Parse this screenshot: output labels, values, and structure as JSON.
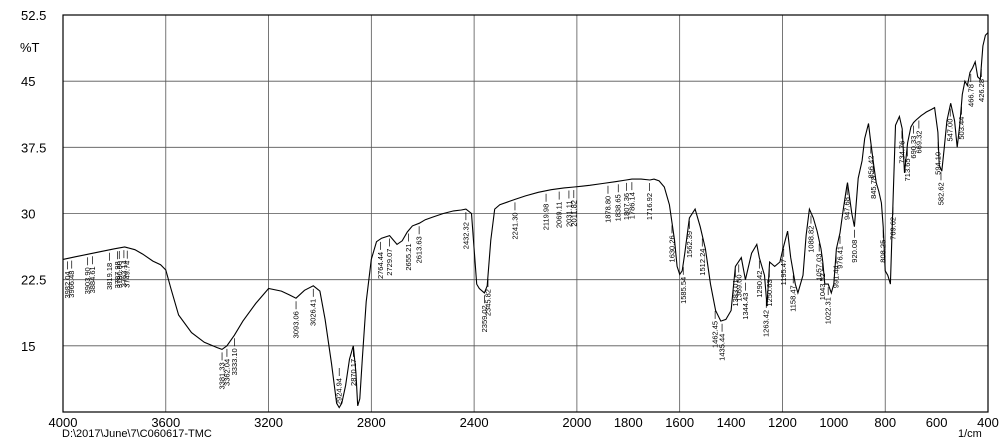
{
  "chart_data": {
    "type": "line",
    "title": "",
    "xlabel": "",
    "ylabel": "%T",
    "x_unit": "1/cm",
    "footer": "D:\\2017\\June\\7\\C060617-TMC",
    "xlim": [
      4000,
      400
    ],
    "ylim": [
      7.5,
      52.5
    ],
    "x_ticks": [
      4000,
      3600,
      3200,
      2800,
      2400,
      2000,
      1600,
      1200,
      800,
      400
    ],
    "x_tick_labels": [
      "4000",
      "3600",
      "3200",
      "2800",
      "2400",
      "2000",
      "1800",
      "1600",
      "1400",
      "1200",
      "1000",
      "800",
      "600",
      "400"
    ],
    "x_tick_values": [
      4000,
      3600,
      3200,
      2800,
      2400,
      2000,
      1800,
      1600,
      1400,
      1200,
      1000,
      800,
      600,
      400
    ],
    "y_ticks": [
      15,
      22.5,
      30,
      37.5,
      45,
      52.5
    ],
    "y_tick_labels": [
      "15",
      "22.5",
      "30",
      "37.5",
      "45",
      "52.5"
    ],
    "grid": true,
    "series": [
      {
        "x": [
          4000,
          3950,
          3900,
          3850,
          3800,
          3760,
          3720,
          3690,
          3650,
          3620,
          3600,
          3580,
          3550,
          3500,
          3450,
          3400,
          3381,
          3362,
          3333,
          3300,
          3250,
          3200,
          3150,
          3120,
          3093,
          3060,
          3026,
          3000,
          2980,
          2955,
          2935,
          2925,
          2915,
          2900,
          2885,
          2870,
          2860,
          2853,
          2845,
          2835,
          2820,
          2800,
          2780,
          2760,
          2729,
          2700,
          2680,
          2660,
          2640,
          2613,
          2590,
          2560,
          2520,
          2480,
          2450,
          2432,
          2410,
          2390,
          2380,
          2360,
          2349,
          2335,
          2320,
          2300,
          2241,
          2200,
          2150,
          2100,
          2050,
          2011,
          1980,
          1950,
          1900,
          1850,
          1808,
          1786,
          1750,
          1716,
          1700,
          1680,
          1660,
          1640,
          1620,
          1610,
          1600,
          1590,
          1580,
          1562,
          1540,
          1520,
          1500,
          1480,
          1460,
          1440,
          1420,
          1400,
          1383,
          1360,
          1344,
          1320,
          1300,
          1290,
          1270,
          1260,
          1250,
          1230,
          1210,
          1198,
          1180,
          1168,
          1150,
          1140,
          1120,
          1108,
          1095,
          1080,
          1065,
          1050,
          1043,
          1035,
          1022,
          1010,
          1000,
          990,
          976,
          963,
          950,
          947,
          930,
          920,
          905,
          890,
          880,
          865,
          858,
          845,
          835,
          825,
          815,
          808,
          800,
          790,
          780,
          769,
          760,
          745,
          734,
          725,
          713,
          700,
          690,
          680,
          660,
          650,
          640,
          620,
          608,
          595,
          590,
          580,
          570,
          560,
          545,
          530,
          520,
          510,
          500,
          490,
          480,
          470,
          460,
          450,
          440,
          430,
          420,
          410,
          400
        ],
        "y": [
          24.8,
          25.1,
          25.4,
          25.7,
          26,
          26.2,
          25.9,
          25.4,
          24.6,
          24.2,
          23.6,
          21.5,
          18.5,
          16.5,
          15.4,
          14.8,
          14.6,
          15,
          16.2,
          17.8,
          19.8,
          21.5,
          21.2,
          20.8,
          20.4,
          21.3,
          21.8,
          21.2,
          18,
          13,
          8.5,
          8,
          8.5,
          10.5,
          13.5,
          15,
          12,
          8.2,
          9,
          13.5,
          20,
          24.8,
          26.8,
          27.2,
          27.5,
          26.5,
          26.9,
          27.9,
          28.6,
          28.9,
          29.3,
          29.6,
          30,
          30.3,
          30.4,
          30.5,
          30,
          22,
          21.5,
          21,
          21.8,
          27,
          30.5,
          31,
          31.6,
          32,
          32.4,
          32.7,
          32.9,
          33,
          33.1,
          33.2,
          33.4,
          33.6,
          33.8,
          33.9,
          33.9,
          33.8,
          33.9,
          33.7,
          33,
          31,
          27,
          24,
          23.1,
          23.5,
          25.5,
          29.5,
          30.5,
          28.5,
          26,
          22,
          19,
          17.8,
          18,
          19,
          24,
          25,
          22.5,
          25.5,
          26.5,
          25,
          23,
          19.5,
          24.5,
          24,
          24.5,
          26,
          28,
          25,
          22,
          21,
          23,
          27.5,
          30.5,
          29.5,
          28,
          26,
          24.5,
          22,
          22,
          21,
          22,
          26,
          27.8,
          30.5,
          33,
          33.5,
          30,
          28.5,
          34,
          36,
          38.5,
          40.2,
          38.5,
          35.5,
          33.5,
          32.5,
          31.2,
          28.5,
          23.5,
          23,
          22,
          32,
          40,
          41,
          39.6,
          34.6,
          38,
          39.8,
          40.3,
          40.6,
          41.1,
          41.3,
          41.5,
          41.8,
          42,
          39.2,
          35.5,
          34.8,
          37.5,
          40.5,
          42.5,
          40.5,
          37.5,
          40,
          43.5,
          45,
          44.5,
          46,
          46.5,
          47.2,
          45.5,
          45.2,
          49,
          50.2,
          50.5
        ],
        "name": ""
      }
    ],
    "peak_labels": [
      {
        "text": "3982.04",
        "x": 3982
      },
      {
        "text": "3966.48",
        "x": 3966
      },
      {
        "text": "3903.90",
        "x": 3904
      },
      {
        "text": "3884.61",
        "x": 3885
      },
      {
        "text": "3819.18",
        "x": 3819
      },
      {
        "text": "3787.98",
        "x": 3788
      },
      {
        "text": "3780.60",
        "x": 3781
      },
      {
        "text": "3763.14",
        "x": 3763
      },
      {
        "text": "3749.74",
        "x": 3750
      },
      {
        "text": "3381.33",
        "x": 3381
      },
      {
        "text": "3362.04",
        "x": 3362
      },
      {
        "text": "3333.10",
        "x": 3333
      },
      {
        "text": "3093.06",
        "x": 3093
      },
      {
        "text": "3026.41",
        "x": 3026
      },
      {
        "text": "2924.94",
        "x": 2925
      },
      {
        "text": "2870.17",
        "x": 2870
      },
      {
        "text": "2764.44",
        "x": 2764
      },
      {
        "text": "2729.07",
        "x": 2729
      },
      {
        "text": "2655.21",
        "x": 2655
      },
      {
        "text": "2613.63",
        "x": 2614
      },
      {
        "text": "2432.32",
        "x": 2432
      },
      {
        "text": "2359.02",
        "x": 2359
      },
      {
        "text": "2345.82",
        "x": 2346
      },
      {
        "text": "2241.30",
        "x": 2241
      },
      {
        "text": "2119.98",
        "x": 2120
      },
      {
        "text": "2069.11",
        "x": 2069
      },
      {
        "text": "2031.11",
        "x": 2031
      },
      {
        "text": "2011.82",
        "x": 2012
      },
      {
        "text": "1878.80",
        "x": 1879
      },
      {
        "text": "1838.65",
        "x": 1839
      },
      {
        "text": "1807.36",
        "x": 1807
      },
      {
        "text": "1786.14",
        "x": 1786
      },
      {
        "text": "1716.92",
        "x": 1717
      },
      {
        "text": "1630.26",
        "x": 1630
      },
      {
        "text": "1585.54",
        "x": 1586
      },
      {
        "text": "1562.39",
        "x": 1562
      },
      {
        "text": "1512.24",
        "x": 1512
      },
      {
        "text": "1462.45",
        "x": 1462
      },
      {
        "text": "1435.44",
        "x": 1435
      },
      {
        "text": "1383.01",
        "x": 1383
      },
      {
        "text": "1369.60",
        "x": 1370
      },
      {
        "text": "1344.43",
        "x": 1344
      },
      {
        "text": "1290.42",
        "x": 1290
      },
      {
        "text": "1263.42",
        "x": 1263
      },
      {
        "text": "1250.63",
        "x": 1251
      },
      {
        "text": "1195.47",
        "x": 1195
      },
      {
        "text": "1158.47",
        "x": 1158
      },
      {
        "text": "1088.82",
        "x": 1089
      },
      {
        "text": "1057.03",
        "x": 1057
      },
      {
        "text": "1043.52",
        "x": 1044
      },
      {
        "text": "1022.31",
        "x": 1022
      },
      {
        "text": "991.44",
        "x": 991
      },
      {
        "text": "976.41",
        "x": 976
      },
      {
        "text": "947.68",
        "x": 948
      },
      {
        "text": "920.08",
        "x": 920
      },
      {
        "text": "856.42",
        "x": 856
      },
      {
        "text": "845.78",
        "x": 846
      },
      {
        "text": "808.25",
        "x": 808
      },
      {
        "text": "769.62",
        "x": 770
      },
      {
        "text": "734.76",
        "x": 735
      },
      {
        "text": "713.65",
        "x": 714
      },
      {
        "text": "690.33",
        "x": 690
      },
      {
        "text": "669.32",
        "x": 669
      },
      {
        "text": "594.10",
        "x": 594
      },
      {
        "text": "582.62",
        "x": 583
      },
      {
        "text": "547.00",
        "x": 547
      },
      {
        "text": "503.44",
        "x": 503
      },
      {
        "text": "466.78",
        "x": 467
      },
      {
        "text": "426.28",
        "x": 426
      }
    ]
  }
}
